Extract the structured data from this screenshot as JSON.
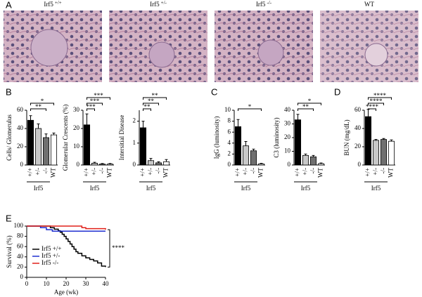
{
  "panels": [
    "A",
    "B",
    "C",
    "D",
    "E"
  ],
  "histology_labels": [
    {
      "name": "Irf5",
      "genotype": "+/+"
    },
    {
      "name": "Irf5",
      "genotype": "+/-"
    },
    {
      "name": "Irf5",
      "genotype": "-/-"
    },
    {
      "name": "WT"
    }
  ],
  "chart_data": [
    {
      "type": "bar",
      "y_label": "Cells/ Glomerulus",
      "categories": [
        "+/+",
        "+/-",
        "-/-",
        "WT"
      ],
      "group_label": "Irf5",
      "values": [
        49,
        40,
        30,
        33
      ],
      "errors": [
        5,
        5,
        4,
        2
      ],
      "colors": [
        "#000000",
        "#c8c8c8",
        "#707070",
        "#ffffff"
      ],
      "ylim": [
        0,
        60
      ],
      "yticks": [
        0,
        20,
        40,
        60
      ],
      "brackets": [
        {
          "text": "**",
          "from": "+/+",
          "to": "-/-"
        },
        {
          "text": "*",
          "from": "+/+",
          "to": "WT"
        }
      ]
    },
    {
      "type": "bar",
      "y_label": "Glomerular  Crescents (%)",
      "categories": [
        "+/+",
        "+/-",
        "-/-",
        "WT"
      ],
      "group_label": "Irf5",
      "values": [
        22,
        1,
        0.5,
        0.5
      ],
      "errors": [
        6,
        0.5,
        0.3,
        0.3
      ],
      "colors": [
        "#000000",
        "#c8c8c8",
        "#707070",
        "#ffffff"
      ],
      "ylim": [
        0,
        30
      ],
      "yticks": [
        0,
        10,
        20,
        30
      ],
      "brackets": [
        {
          "text": "***",
          "from": "+/+",
          "to": "+/-"
        },
        {
          "text": "***",
          "from": "+/+",
          "to": "-/-"
        },
        {
          "text": "***",
          "from": "+/+",
          "to": "WT"
        }
      ]
    },
    {
      "type": "bar",
      "y_label": "Intersitial Disease",
      "categories": [
        "+/+",
        "+/-",
        "-/-",
        "WT"
      ],
      "group_label": "Irf5",
      "values": [
        1.7,
        0.2,
        0.1,
        0.15
      ],
      "errors": [
        0.3,
        0.1,
        0.05,
        0.1
      ],
      "colors": [
        "#000000",
        "#c8c8c8",
        "#707070",
        "#ffffff"
      ],
      "ylim": [
        0,
        2.5
      ],
      "yticks": [
        0,
        1,
        2
      ],
      "brackets": [
        {
          "text": "**",
          "from": "+/+",
          "to": "+/-"
        },
        {
          "text": "**",
          "from": "+/+",
          "to": "-/-"
        },
        {
          "text": "**",
          "from": "+/+",
          "to": "WT"
        }
      ]
    },
    {
      "type": "bar",
      "y_label": "IgG (luminosity)",
      "categories": [
        "+/+",
        "+/-",
        "-/-",
        "WT"
      ],
      "group_label": "Irf5",
      "values": [
        7,
        3.5,
        2.6,
        0.2
      ],
      "errors": [
        1.3,
        0.8,
        0.3,
        0.1
      ],
      "colors": [
        "#000000",
        "#c8c8c8",
        "#707070",
        "#ffffff"
      ],
      "ylim": [
        0,
        10
      ],
      "yticks": [
        0,
        2,
        4,
        6,
        8,
        10
      ],
      "brackets": [
        {
          "text": "*",
          "from": "+/+",
          "to": "WT"
        }
      ]
    },
    {
      "type": "bar",
      "y_label": "C3 (luminosity)",
      "categories": [
        "+/+",
        "+/-",
        "-/-",
        "WT"
      ],
      "group_label": "Irf5",
      "values": [
        33,
        7,
        6,
        1
      ],
      "errors": [
        4,
        1,
        1,
        0.5
      ],
      "colors": [
        "#000000",
        "#c8c8c8",
        "#707070",
        "#ffffff"
      ],
      "ylim": [
        0,
        40
      ],
      "yticks": [
        0,
        10,
        20,
        30,
        40
      ],
      "brackets": [
        {
          "text": "**",
          "from": "+/+",
          "to": "-/-"
        },
        {
          "text": "*",
          "from": "+/+",
          "to": "WT"
        }
      ]
    },
    {
      "type": "bar",
      "y_label": "BUN (mg/dL)",
      "categories": [
        "+/+",
        "+/-",
        "-/-",
        "WT"
      ],
      "group_label": "Irf5",
      "values": [
        53,
        27,
        28,
        26
      ],
      "errors": [
        8,
        1,
        1,
        1.5
      ],
      "colors": [
        "#000000",
        "#c8c8c8",
        "#707070",
        "#ffffff"
      ],
      "ylim": [
        0,
        60
      ],
      "yticks": [
        0,
        20,
        40,
        60
      ],
      "brackets": [
        {
          "text": "****",
          "from": "+/+",
          "to": "+/-"
        },
        {
          "text": "****",
          "from": "+/+",
          "to": "-/-"
        },
        {
          "text": "****",
          "from": "+/+",
          "to": "WT"
        }
      ]
    },
    {
      "type": "step",
      "x_label": "Age (wk)",
      "y_label": "Survival (%)",
      "legend": "lower left",
      "xlim": [
        0,
        40
      ],
      "xticks": [
        0,
        10,
        20,
        30,
        40
      ],
      "ylim": [
        0,
        100
      ],
      "yticks": [
        0,
        20,
        40,
        60,
        80,
        100
      ],
      "series": [
        {
          "name": "Irf5 +/+",
          "color": "#000000",
          "x": [
            0,
            12,
            14,
            16,
            17,
            18,
            19,
            20,
            21,
            22,
            23,
            24,
            25,
            26,
            28,
            30,
            32,
            34,
            36,
            38,
            40
          ],
          "values": [
            100,
            97,
            94,
            91,
            88,
            84,
            80,
            75,
            70,
            65,
            60,
            55,
            50,
            47,
            42,
            38,
            35,
            32,
            28,
            22,
            20
          ]
        },
        {
          "name": "Irf5 +/-",
          "color": "#1f2fd0",
          "x": [
            0,
            7,
            10,
            13,
            40
          ],
          "values": [
            100,
            97,
            93,
            90,
            90
          ]
        },
        {
          "name": "Irf5 -/-",
          "color": "#e0201a",
          "x": [
            0,
            28,
            30,
            40
          ],
          "values": [
            100,
            97,
            95,
            93
          ]
        }
      ],
      "annotation": "****"
    }
  ]
}
